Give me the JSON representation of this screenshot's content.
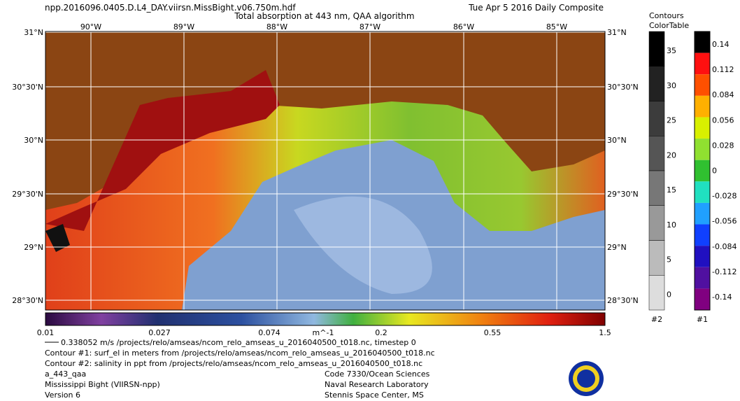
{
  "header": {
    "file": "npp.2016096.0405.D.L4_DAY.viirsn.MissBight.v06.750m.hdf",
    "title": "Total absorption at 443 nm, QAA algorithm",
    "date": "Tue Apr  5 2016 Daily Composite"
  },
  "map": {
    "lon_labels": [
      "90°W",
      "89°W",
      "88°W",
      "87°W",
      "86°W",
      "85°W"
    ],
    "lat_labels": [
      "31°N",
      "30°30'N",
      "30°N",
      "29°30'N",
      "29°N",
      "28°30'N"
    ]
  },
  "colorbar": {
    "labels": [
      "0.01",
      "0.027",
      "0.074",
      "m^-1",
      "0.2",
      "0.55",
      "1.5"
    ]
  },
  "contour_legend": {
    "title": "Contours",
    "labels": [
      "35",
      "30",
      "25",
      "20",
      "15",
      "10",
      "5",
      "0"
    ],
    "id": "#2"
  },
  "color_table": {
    "title": "ColorTable",
    "labels": [
      "0.14",
      "0.112",
      "0.084",
      "0.056",
      "0.028",
      "0",
      "-0.028",
      "-0.056",
      "-0.084",
      "-0.112",
      "-0.14"
    ],
    "id": "#1"
  },
  "captions": {
    "vector": "0.338052 m/s /projects/relo/amseas/ncom_relo_amseas_u_2016040500_t018.nc, timestep 0",
    "contour1": "Contour #1: surf_el in meters from /projects/relo/amseas/ncom_relo_amseas_u_2016040500_t018.nc",
    "contour2": "Contour #2: salinity in ppt from /projects/relo/amseas/ncom_relo_amseas_u_2016040500_t018.nc",
    "left": [
      "a_443_qaa",
      "Mississippi Bight (VIIRSN-npp)",
      "Version 6"
    ],
    "right": [
      "Code 7330/Ocean Sciences",
      "Naval Research Laboratory",
      "Stennis Space Center, MS"
    ]
  }
}
